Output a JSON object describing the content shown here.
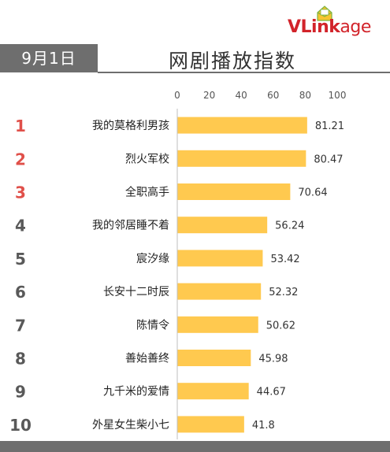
{
  "header": {
    "brand": {
      "v": "V",
      "link": "Link",
      "age": "age"
    },
    "date": "9月1日",
    "title": "网剧播放指数"
  },
  "colors": {
    "bar": "#ffc94f",
    "rank_top": "#e0504a",
    "rank_rest": "#595959",
    "tag_bg": "#6e6e6e"
  },
  "chart_data": {
    "type": "bar",
    "orientation": "horizontal",
    "categories": [
      "我的莫格利男孩",
      "烈火军校",
      "全职高手",
      "我的邻居睡不着",
      "宸汐缘",
      "长安十二时辰",
      "陈情令",
      "善始善终",
      "九千米的爱情",
      "外星女生柴小七"
    ],
    "ranks": [
      "1",
      "2",
      "3",
      "4",
      "5",
      "6",
      "7",
      "8",
      "9",
      "10"
    ],
    "values": [
      81.21,
      80.47,
      70.64,
      56.24,
      53.42,
      52.32,
      50.62,
      45.98,
      44.67,
      41.8
    ],
    "value_labels": [
      "81.21",
      "80.47",
      "70.64",
      "56.24",
      "53.42",
      "52.32",
      "50.62",
      "45.98",
      "44.67",
      "41.8"
    ],
    "xlim": [
      0,
      100
    ],
    "x_ticks": [
      0,
      20,
      40,
      60,
      80,
      100
    ],
    "x_tick_labels": [
      "0",
      "20",
      "40",
      "60",
      "80",
      "100"
    ],
    "axis_position": "top",
    "grid": false,
    "legend": "none"
  }
}
